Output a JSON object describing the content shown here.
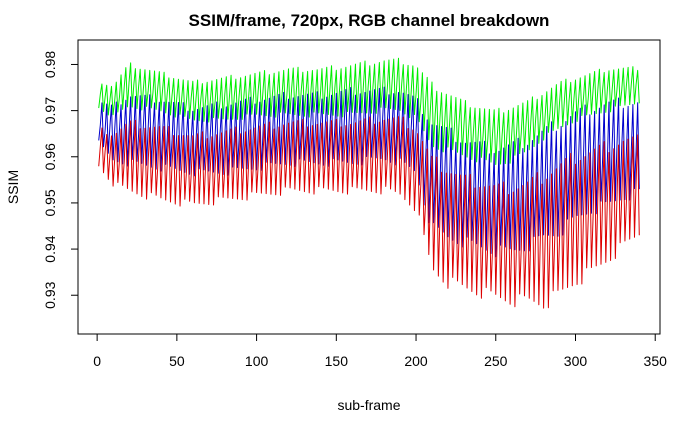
{
  "chart_data": {
    "type": "line",
    "title": "SSIM/frame, 720px, RGB channel breakdown",
    "xlabel": "sub-frame",
    "ylabel": "SSIM",
    "xlim": [
      -12,
      353
    ],
    "ylim": [
      0.9216,
      0.9853
    ],
    "xticks": [
      0,
      50,
      100,
      150,
      200,
      250,
      300,
      350
    ],
    "yticks": [
      0.93,
      0.94,
      0.95,
      0.96,
      0.97,
      0.98
    ],
    "ytick_labels": [
      "0.93",
      "0.94",
      "0.95",
      "0.96",
      "0.97",
      "0.98"
    ],
    "xtick_labels": [
      "0",
      "50",
      "100",
      "150",
      "200",
      "250",
      "300",
      "350"
    ],
    "grid": false,
    "legend": "none",
    "x_start": 1,
    "x_end": 340,
    "series": [
      {
        "color": "#00ee00",
        "envelope_x": [
          1,
          10,
          20,
          40,
          60,
          80,
          100,
          120,
          140,
          160,
          180,
          190,
          200,
          205,
          210,
          220,
          230,
          240,
          250,
          260,
          270,
          280,
          290,
          300,
          310,
          320,
          330,
          340
        ],
        "envelope_high": [
          0.977,
          0.976,
          0.981,
          0.979,
          0.977,
          0.978,
          0.979,
          0.98,
          0.98,
          0.981,
          0.982,
          0.982,
          0.981,
          0.979,
          0.977,
          0.975,
          0.973,
          0.972,
          0.971,
          0.972,
          0.973,
          0.975,
          0.977,
          0.978,
          0.979,
          0.98,
          0.98,
          0.98
        ],
        "envelope_low": [
          0.97,
          0.968,
          0.97,
          0.969,
          0.967,
          0.967,
          0.968,
          0.968,
          0.968,
          0.968,
          0.969,
          0.969,
          0.967,
          0.964,
          0.961,
          0.96,
          0.959,
          0.958,
          0.957,
          0.958,
          0.96,
          0.963,
          0.965,
          0.967,
          0.968,
          0.969,
          0.97,
          0.971
        ]
      },
      {
        "color": "#0000cc",
        "envelope_x": [
          1,
          10,
          20,
          40,
          60,
          80,
          100,
          120,
          140,
          160,
          180,
          190,
          200,
          205,
          210,
          220,
          230,
          240,
          250,
          260,
          270,
          280,
          290,
          300,
          310,
          320,
          330,
          340
        ],
        "envelope_high": [
          0.973,
          0.972,
          0.975,
          0.974,
          0.972,
          0.973,
          0.974,
          0.975,
          0.975,
          0.976,
          0.976,
          0.976,
          0.974,
          0.972,
          0.97,
          0.968,
          0.966,
          0.965,
          0.964,
          0.965,
          0.966,
          0.968,
          0.97,
          0.972,
          0.973,
          0.974,
          0.974,
          0.974
        ],
        "envelope_low": [
          0.962,
          0.958,
          0.957,
          0.956,
          0.955,
          0.955,
          0.956,
          0.957,
          0.957,
          0.957,
          0.958,
          0.957,
          0.955,
          0.948,
          0.942,
          0.94,
          0.939,
          0.938,
          0.937,
          0.937,
          0.938,
          0.94,
          0.941,
          0.944,
          0.946,
          0.947,
          0.949,
          0.95
        ]
      },
      {
        "color": "#dd0000",
        "envelope_x": [
          1,
          10,
          20,
          40,
          60,
          80,
          100,
          120,
          140,
          160,
          180,
          190,
          200,
          205,
          210,
          220,
          230,
          240,
          250,
          260,
          270,
          280,
          290,
          300,
          310,
          320,
          330,
          340
        ],
        "envelope_high": [
          0.967,
          0.966,
          0.969,
          0.968,
          0.966,
          0.967,
          0.968,
          0.969,
          0.969,
          0.969,
          0.97,
          0.97,
          0.968,
          0.965,
          0.962,
          0.96,
          0.958,
          0.957,
          0.956,
          0.956,
          0.957,
          0.959,
          0.961,
          0.963,
          0.964,
          0.965,
          0.966,
          0.966
        ],
        "envelope_low": [
          0.957,
          0.953,
          0.951,
          0.949,
          0.948,
          0.949,
          0.95,
          0.951,
          0.951,
          0.951,
          0.951,
          0.95,
          0.947,
          0.94,
          0.933,
          0.93,
          0.929,
          0.928,
          0.927,
          0.926,
          0.926,
          0.925,
          0.927,
          0.93,
          0.932,
          0.935,
          0.938,
          0.941
        ]
      }
    ]
  }
}
